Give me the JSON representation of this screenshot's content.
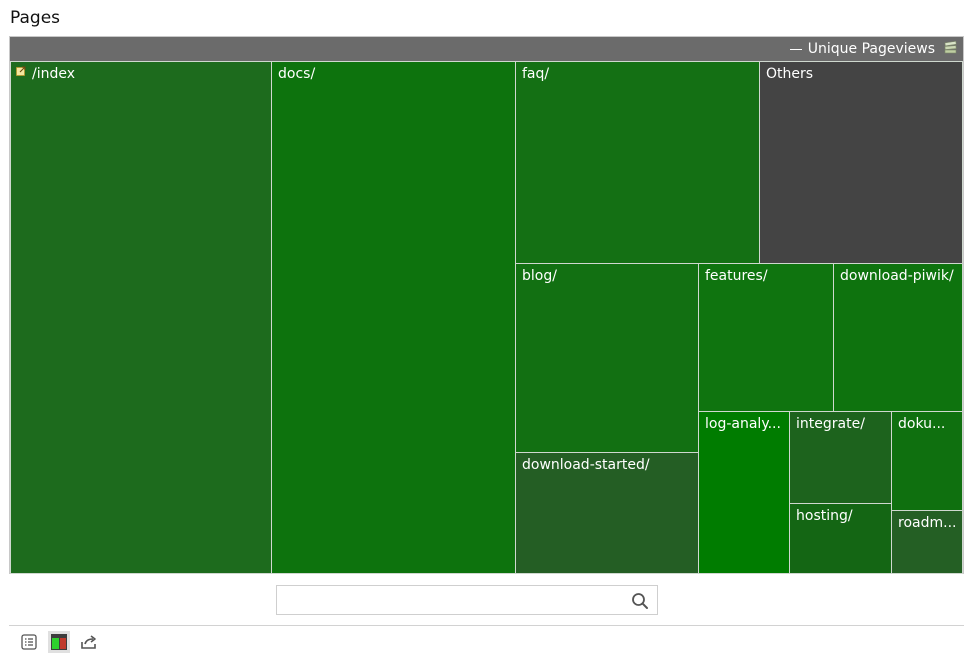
{
  "widget": {
    "title": "Pages"
  },
  "treemap": {
    "metric_label": "Unique Pageviews",
    "tiles": [
      {
        "label": "/index",
        "color": "#1d6b1d"
      },
      {
        "label": "docs/",
        "color": "#0d730d"
      },
      {
        "label": "faq/",
        "color": "#147014"
      },
      {
        "label": "Others",
        "color": "#444444"
      },
      {
        "label": "blog/",
        "color": "#127012"
      },
      {
        "label": "features/",
        "color": "#0f740f"
      },
      {
        "label": "download-piwik/",
        "color": "#0e730e"
      },
      {
        "label": "download-started/",
        "color": "#245e24"
      },
      {
        "label": "log-analy...",
        "color": "#007c00"
      },
      {
        "label": "integrate/",
        "color": "#1d631d"
      },
      {
        "label": "doku...",
        "color": "#0f700f"
      },
      {
        "label": "hosting/",
        "color": "#146614"
      },
      {
        "label": "roadm...",
        "color": "#245f24"
      }
    ]
  },
  "search": {
    "value": "",
    "placeholder": ""
  },
  "footer": {
    "icons": [
      "table-view-icon",
      "treemap-view-icon",
      "export-icon"
    ]
  }
}
